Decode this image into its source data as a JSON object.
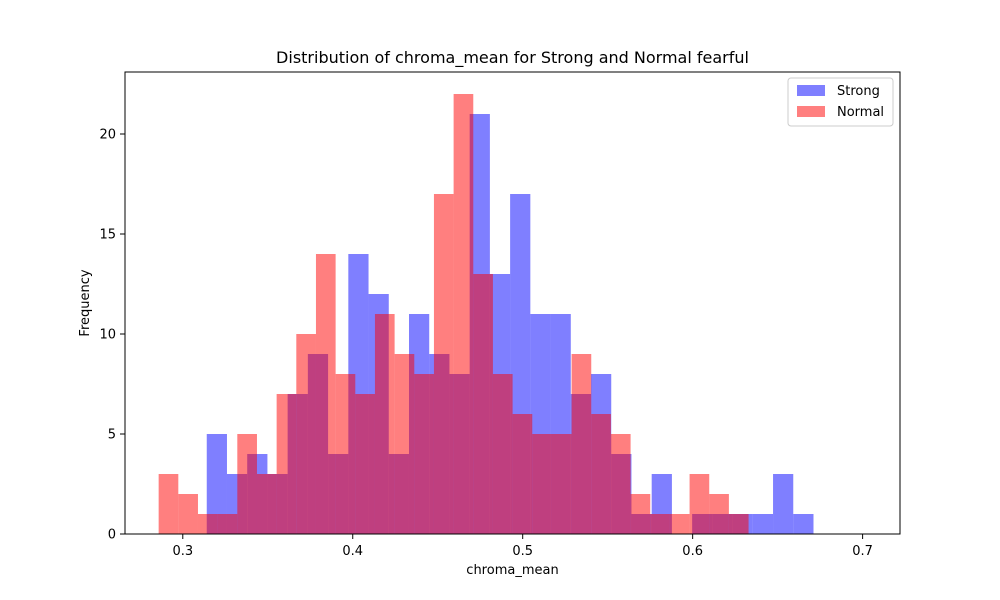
{
  "chart_data": {
    "type": "histogram",
    "title": "Distribution of chroma_mean for Strong and Normal fearful",
    "xlabel": "chroma_mean",
    "ylabel": "Frequency",
    "xlim": [
      0.266,
      0.722
    ],
    "ylim": [
      0,
      23.1
    ],
    "xticks": [
      0.3,
      0.4,
      0.5,
      0.6,
      0.7
    ],
    "xtick_labels": [
      "0.3",
      "0.4",
      "0.5",
      "0.6",
      "0.7"
    ],
    "yticks": [
      0,
      5,
      10,
      15,
      20
    ],
    "ytick_labels": [
      "0",
      "5",
      "10",
      "15",
      "20"
    ],
    "grid": false,
    "legend_position": "top-right",
    "series": [
      {
        "name": "Strong",
        "color": "#0000ff",
        "opacity": 0.5,
        "bin_start": 0.3141,
        "bin_width": 0.0119,
        "counts": [
          5,
          3,
          4,
          3,
          7,
          9,
          4,
          14,
          12,
          4,
          11,
          9,
          8,
          21,
          13,
          17,
          11,
          11,
          7,
          8,
          4,
          1,
          3,
          0,
          1,
          1,
          1,
          1,
          3,
          1
        ]
      },
      {
        "name": "Normal",
        "color": "#ff0000",
        "opacity": 0.5,
        "bin_start": 0.2858,
        "bin_width": 0.01157,
        "counts": [
          3,
          2,
          1,
          1,
          5,
          3,
          7,
          10,
          14,
          8,
          7,
          11,
          9,
          8,
          17,
          22,
          13,
          8,
          6,
          5,
          5,
          9,
          6,
          5,
          2,
          1,
          1,
          3,
          2,
          1
        ]
      }
    ]
  }
}
